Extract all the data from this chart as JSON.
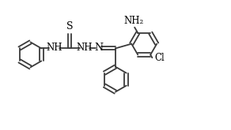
{
  "background_color": "#ffffff",
  "line_color": "#3a3a3a",
  "line_width": 1.3,
  "text_color": "#000000",
  "font_size": 8.5,
  "fig_width": 2.92,
  "fig_height": 1.65,
  "dpi": 100,
  "xlim": [
    0,
    10
  ],
  "ylim": [
    0,
    5.5
  ]
}
